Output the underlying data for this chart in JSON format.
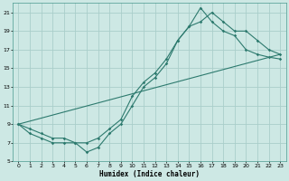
{
  "xlabel": "Humidex (Indice chaleur)",
  "bg_color": "#cde8e4",
  "grid_color": "#aaceca",
  "line_color": "#2d7a6e",
  "xlim": [
    -0.5,
    23.5
  ],
  "ylim": [
    5,
    22
  ],
  "xticks": [
    0,
    1,
    2,
    3,
    4,
    5,
    6,
    7,
    8,
    9,
    10,
    11,
    12,
    13,
    14,
    15,
    16,
    17,
    18,
    19,
    20,
    21,
    22,
    23
  ],
  "yticks": [
    5,
    7,
    9,
    11,
    13,
    15,
    17,
    19,
    21
  ],
  "line1_x": [
    0,
    1,
    2,
    3,
    4,
    5,
    6,
    7,
    8,
    9,
    10,
    11,
    12,
    13,
    14,
    15,
    16,
    17,
    18,
    19,
    20,
    21,
    22,
    23
  ],
  "line1_y": [
    9,
    8,
    7.5,
    7,
    7,
    7,
    6,
    6.5,
    8,
    9,
    11,
    13,
    14,
    15.5,
    18,
    19.5,
    21.5,
    20,
    19,
    18.5,
    17,
    16.5,
    16.2,
    16
  ],
  "line2_x": [
    0,
    1,
    2,
    3,
    4,
    5,
    6,
    7,
    8,
    9,
    10,
    11,
    12,
    13,
    14,
    15,
    16,
    17,
    18,
    19,
    20,
    21,
    22,
    23
  ],
  "line2_y": [
    9,
    8.5,
    8,
    7.5,
    7.5,
    7,
    7,
    7.5,
    8.5,
    9.5,
    12,
    13.5,
    14.5,
    16,
    18,
    19.5,
    20,
    21,
    20,
    19,
    19,
    18,
    17,
    16.5
  ],
  "line3_x": [
    0,
    23
  ],
  "line3_y": [
    9,
    16.5
  ]
}
